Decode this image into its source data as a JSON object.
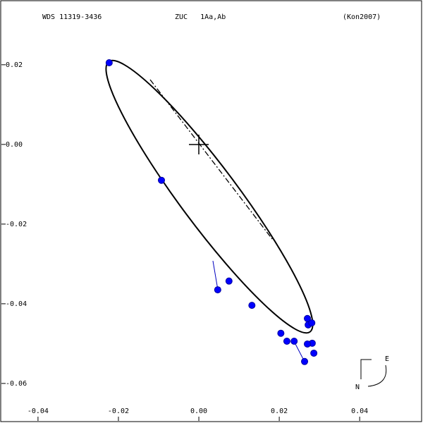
{
  "chart_data": {
    "type": "scatter",
    "header": [
      "WDS 11319-3436",
      "ZUC   1Aa,Ab",
      "(Kon2007)"
    ],
    "compass": {
      "east": "E",
      "north": "N"
    },
    "color": "#0000ff",
    "x": [
      -0.0223,
      -0.0093,
      0.0047,
      0.0075,
      0.0132,
      0.0204,
      0.0219,
      0.0237,
      0.0263,
      0.027,
      0.0272,
      0.0281,
      0.0282,
      0.027,
      0.0286
    ],
    "values": [
      0.0205,
      -0.009,
      -0.0365,
      -0.0343,
      -0.0404,
      -0.0474,
      -0.0494,
      -0.0494,
      -0.0545,
      -0.0437,
      -0.0453,
      -0.0448,
      -0.0499,
      -0.0501,
      -0.0524
    ],
    "xlim": [
      -0.0491,
      0.0554
    ],
    "ylim": [
      -0.0694,
      0.0359
    ],
    "xticks": [
      -0.04,
      -0.02,
      {
        "value": 0,
        "label": "0.00"
      },
      0.02,
      0.04
    ],
    "yticks": [
      0.02,
      {
        "value": 0,
        "label": "0.00"
      },
      -0.02,
      -0.04,
      -0.06
    ]
  }
}
